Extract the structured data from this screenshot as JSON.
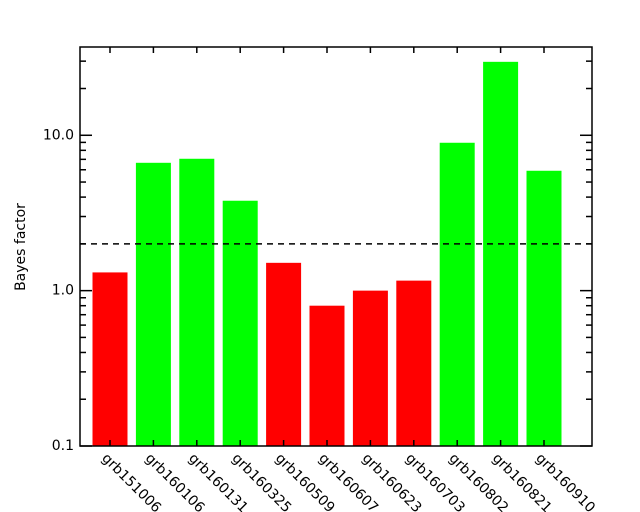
{
  "chart_data": {
    "type": "bar",
    "y_label": "Bayes factor",
    "log_y": true,
    "categories": [
      "grb151006",
      "grb160106",
      "grb160131",
      "grb160325",
      "grb160509",
      "grb160607",
      "grb160623",
      "grb160703",
      "grb160802",
      "grb160821",
      "grb160910"
    ],
    "values": [
      1.31,
      6.65,
      7.06,
      3.79,
      1.51,
      0.8,
      1.0,
      1.16,
      8.95,
      29.7,
      5.91
    ],
    "colors": [
      "#ff0000",
      "#00ff00",
      "#00ff00",
      "#00ff00",
      "#ff0000",
      "#ff0000",
      "#ff0000",
      "#ff0000",
      "#00ff00",
      "#00ff00",
      "#00ff00"
    ],
    "threshold": 2,
    "ylim": [
      0.1,
      37
    ],
    "yticks": [
      0.1,
      {
        "value": 1,
        "label": "1.0"
      },
      {
        "value": 10,
        "label": "10.0"
      }
    ],
    "minor_yticks": [
      0.2,
      0.3,
      0.4,
      0.5,
      0.6,
      0.7,
      0.8,
      0.9,
      2,
      3,
      4,
      5,
      6,
      7,
      8,
      9,
      20,
      30
    ]
  }
}
